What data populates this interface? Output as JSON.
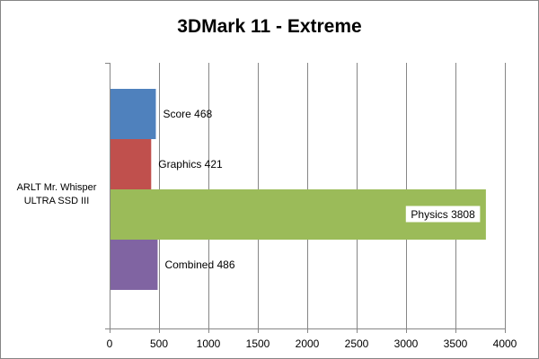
{
  "chart_data": {
    "type": "bar",
    "orientation": "horizontal",
    "title": "3DMark 11 - Extreme",
    "xlabel": "",
    "ylabel": "",
    "categories": [
      "ARLT Mr. Whisper ULTRA SSD III"
    ],
    "category_lines": [
      "ARLT Mr. Whisper",
      "ULTRA SSD III"
    ],
    "series": [
      {
        "name": "Score",
        "values": [
          468
        ],
        "color": "#4F81BD",
        "label": "Score 468"
      },
      {
        "name": "Graphics",
        "values": [
          421
        ],
        "color": "#C0504D",
        "label": "Graphics 421"
      },
      {
        "name": "Physics",
        "values": [
          3808
        ],
        "color": "#9BBB59",
        "label": "Physics 3808"
      },
      {
        "name": "Combined",
        "values": [
          486
        ],
        "color": "#8064A2",
        "label": "Combined 486"
      }
    ],
    "xlim": [
      0,
      4000
    ],
    "x_ticks": [
      0,
      500,
      1000,
      1500,
      2000,
      2500,
      3000,
      3500,
      4000
    ],
    "x_tick_labels": [
      "0",
      "500",
      "1000",
      "1500",
      "2000",
      "2500",
      "3000",
      "3500",
      "4000"
    ],
    "grid": "vertical-on",
    "legend": "none"
  }
}
